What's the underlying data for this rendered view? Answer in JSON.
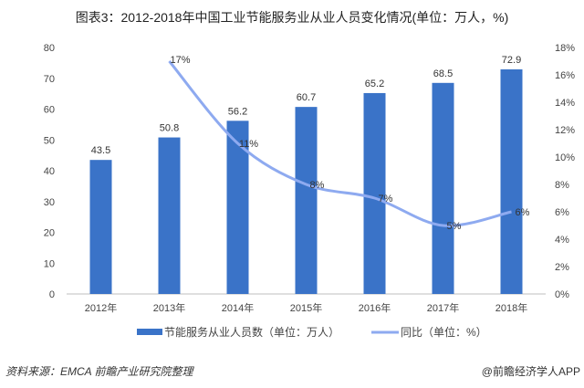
{
  "title": "图表3：2012-2018年中国工业节能服务业从业人员变化情况(单位：万人，%)",
  "source": "资料来源：EMCA 前瞻产业研究院整理",
  "credit": "@前瞻经济学人APP",
  "chart_data": {
    "type": "bar+line",
    "categories": [
      "2012年",
      "2013年",
      "2014年",
      "2015年",
      "2016年",
      "2017年",
      "2018年"
    ],
    "series": [
      {
        "name": "节能服务从业人员数（单位：万人）",
        "type": "bar",
        "axis": "left",
        "color": "#3a73c8",
        "values": [
          43.5,
          50.8,
          56.2,
          60.7,
          65.2,
          68.5,
          72.9
        ],
        "labels": [
          "43.5",
          "50.8",
          "56.2",
          "60.7",
          "65.2",
          "68.5",
          "72.9"
        ]
      },
      {
        "name": "同比（单位：%）",
        "type": "line",
        "axis": "right",
        "color": "#8eaaf0",
        "values": [
          null,
          17,
          11,
          8,
          7,
          5,
          6
        ],
        "labels": [
          "",
          "17%",
          "11%",
          "8%",
          "7%",
          "5%",
          "6%"
        ]
      }
    ],
    "ylim_left": [
      0,
      80
    ],
    "yticks_left": [
      "0",
      "10",
      "20",
      "30",
      "40",
      "50",
      "60",
      "70",
      "80"
    ],
    "ylim_right": [
      0,
      18
    ],
    "yticks_right": [
      "0%",
      "2%",
      "4%",
      "6%",
      "8%",
      "10%",
      "12%",
      "14%",
      "16%",
      "18%"
    ],
    "grid": false,
    "legend": "bottom"
  }
}
